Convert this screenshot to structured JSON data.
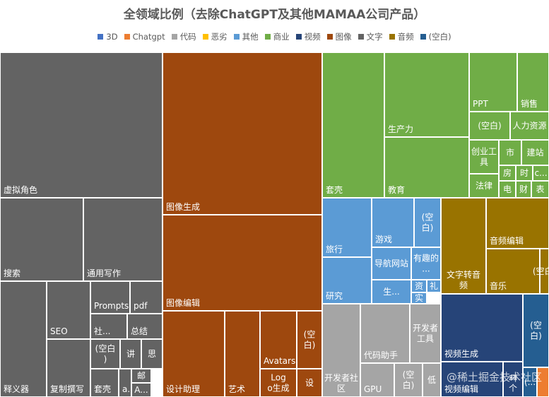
{
  "chart_data": {
    "type": "treemap",
    "title": "全领域比例（去除ChatGPT及其他MAMAA公司产品）",
    "legend": [
      {
        "name": "3D",
        "color": "#4472C4"
      },
      {
        "name": "Chatgpt",
        "color": "#ED7D31"
      },
      {
        "name": "代码",
        "color": "#A5A5A5"
      },
      {
        "name": "恶劣",
        "color": "#FFC000"
      },
      {
        "name": "其他",
        "color": "#5B9BD5"
      },
      {
        "name": "商业",
        "color": "#70AD47"
      },
      {
        "name": "视频",
        "color": "#264478"
      },
      {
        "name": "图像",
        "color": "#9E480E"
      },
      {
        "name": "文字",
        "color": "#636363"
      },
      {
        "name": "音频",
        "color": "#997300"
      },
      {
        "name": "(空白)",
        "color": "#255E91"
      }
    ],
    "groups": [
      {
        "name": "文字",
        "color": "#636363",
        "children": [
          {
            "name": "虚拟角色"
          },
          {
            "name": "搜索"
          },
          {
            "name": "通用写作"
          },
          {
            "name": "释义器"
          },
          {
            "name": "SEO"
          },
          {
            "name": "复制撰写"
          },
          {
            "name": "Prompts"
          },
          {
            "name": "pdf"
          },
          {
            "name": "社..."
          },
          {
            "name": "总结"
          },
          {
            "name": "(空白)"
          },
          {
            "name": "讲"
          },
          {
            "name": "思"
          },
          {
            "name": "邮"
          },
          {
            "name": "套壳"
          },
          {
            "name": "a..."
          },
          {
            "name": "A..."
          }
        ]
      },
      {
        "name": "图像",
        "color": "#9E480E",
        "children": [
          {
            "name": "图像生成"
          },
          {
            "name": "图像编辑"
          },
          {
            "name": "设计助理"
          },
          {
            "name": "艺术"
          },
          {
            "name": "Avatars"
          },
          {
            "name": "(空白)"
          },
          {
            "name": "Logo生成"
          },
          {
            "name": "设"
          }
        ]
      },
      {
        "name": "商业",
        "color": "#70AD47",
        "children": [
          {
            "name": "套壳"
          },
          {
            "name": "生产力"
          },
          {
            "name": "教育"
          },
          {
            "name": "PPT"
          },
          {
            "name": "销售"
          },
          {
            "name": "(空白)"
          },
          {
            "name": "人力资源"
          },
          {
            "name": "创业工具"
          },
          {
            "name": "市"
          },
          {
            "name": "建站"
          },
          {
            "name": "房"
          },
          {
            "name": "时"
          },
          {
            "name": "c..."
          },
          {
            "name": "法律"
          },
          {
            "name": "电"
          },
          {
            "name": "财"
          },
          {
            "name": "表"
          }
        ]
      },
      {
        "name": "其他",
        "color": "#5B9BD5",
        "children": [
          {
            "name": "旅行"
          },
          {
            "name": "游戏"
          },
          {
            "name": "(空白)"
          },
          {
            "name": "研究"
          },
          {
            "name": "导航网站"
          },
          {
            "name": "有趣的..."
          },
          {
            "name": "生..."
          },
          {
            "name": "资"
          },
          {
            "name": "礼"
          },
          {
            "name": "实"
          }
        ]
      },
      {
        "name": "音频",
        "color": "#997300",
        "children": [
          {
            "name": "文字转音频"
          },
          {
            "name": "音频编辑"
          },
          {
            "name": "音乐"
          },
          {
            "name": "(空白)"
          }
        ]
      },
      {
        "name": "代码",
        "color": "#A5A5A5",
        "children": [
          {
            "name": "开发者社区"
          },
          {
            "name": "代码助手"
          },
          {
            "name": "开发者工具"
          },
          {
            "name": "GPU"
          },
          {
            "name": "(空白)"
          },
          {
            "name": "低"
          }
        ]
      },
      {
        "name": "视频",
        "color": "#264478",
        "children": [
          {
            "name": "视频生成"
          },
          {
            "name": "视频编辑"
          },
          {
            "name": "翻"
          },
          {
            "name": "个"
          }
        ]
      },
      {
        "name": "(空白)",
        "color": "#255E91",
        "children": [
          {
            "name": "(空白)"
          },
          {
            "name": "(..."
          }
        ]
      },
      {
        "name": "Chatgpt",
        "color": "#ED7D31",
        "children": []
      }
    ]
  },
  "watermark": "@稀土掘金技术社区"
}
